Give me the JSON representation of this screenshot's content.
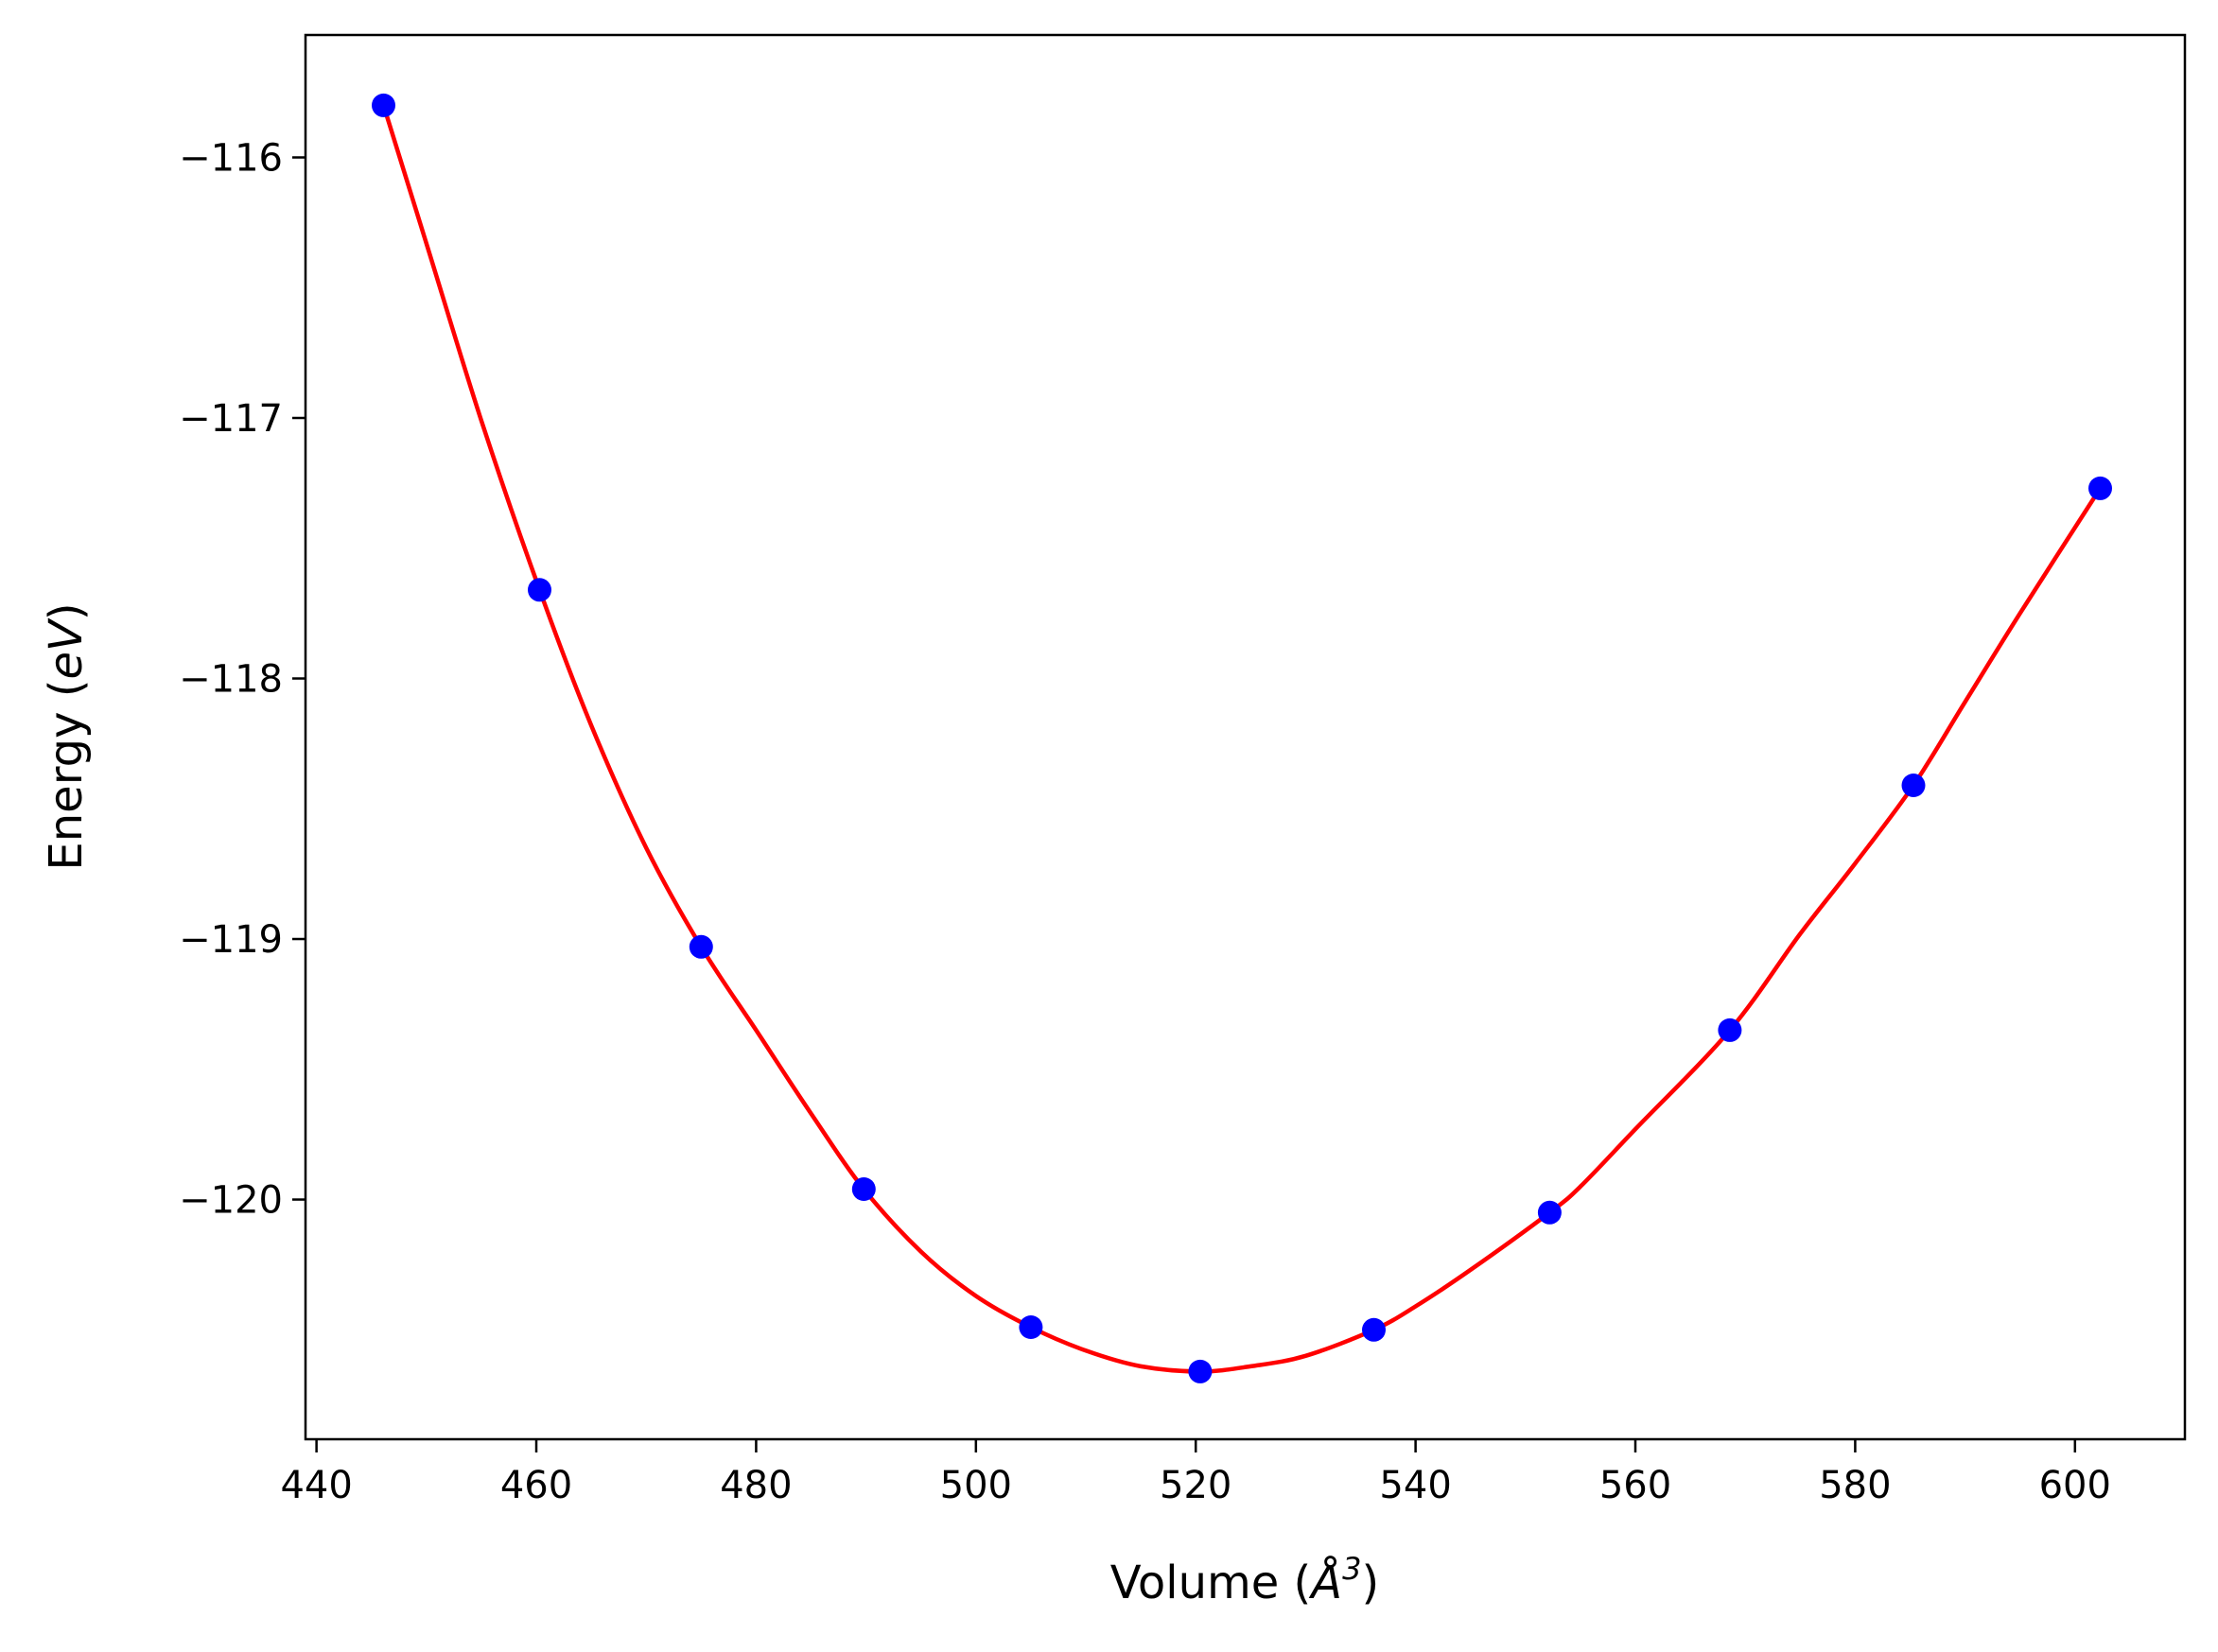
{
  "chart_data": {
    "type": "scatter",
    "xlabel": "Volume (Å³)",
    "xlabel_parts": {
      "base": "Volume (",
      "unit": "Å",
      "exponent": "3",
      "close": ")"
    },
    "ylabel": "Energy (eV)",
    "ylabel_parts": {
      "base": "Energy (",
      "unit": "eV",
      "close": ")"
    },
    "xlim": [
      439,
      610
    ],
    "ylim": [
      -120.92,
      -115.53
    ],
    "x_ticks": [
      440,
      460,
      480,
      500,
      520,
      540,
      560,
      580,
      600
    ],
    "x_tick_labels": [
      "440",
      "460",
      "480",
      "500",
      "520",
      "540",
      "560",
      "580",
      "600"
    ],
    "y_ticks": [
      -116,
      -117,
      -118,
      -119,
      -120
    ],
    "y_tick_labels": [
      "−116",
      "−117",
      "−118",
      "−119",
      "−120"
    ],
    "grid": false,
    "series": [
      {
        "kind": "points",
        "color": "#0000ff",
        "x": [
          446.1,
          460.3,
          475.0,
          489.8,
          505.0,
          520.4,
          536.2,
          552.2,
          568.6,
          585.3,
          602.3
        ],
        "y": [
          -115.8,
          -117.66,
          -119.03,
          -119.96,
          -120.49,
          -120.66,
          -120.5,
          -120.05,
          -119.35,
          -118.41,
          -117.27
        ]
      },
      {
        "kind": "fit-curve",
        "color": "#ff0000",
        "x": [
          446.1,
          450,
          455,
          460.3,
          465,
          470,
          475.0,
          480,
          485,
          489.8,
          495,
          500,
          505.0,
          510,
          515,
          520.4,
          525,
          530,
          536.2,
          540,
          545,
          552.2,
          555,
          560,
          568.6,
          575,
          580,
          585.3,
          590,
          595,
          602.3
        ],
        "y": [
          -115.8,
          -116.33,
          -117.01,
          -117.66,
          -118.18,
          -118.65,
          -119.03,
          -119.35,
          -119.67,
          -119.96,
          -120.2,
          -120.37,
          -120.49,
          -120.58,
          -120.64,
          -120.66,
          -120.64,
          -120.6,
          -120.5,
          -120.41,
          -120.27,
          -120.05,
          -119.95,
          -119.73,
          -119.35,
          -118.98,
          -118.71,
          -118.41,
          -118.09,
          -117.75,
          -117.27
        ]
      }
    ]
  }
}
